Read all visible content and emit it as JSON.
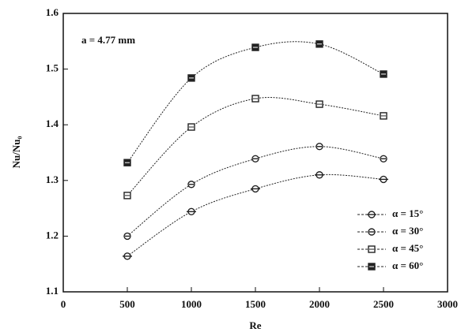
{
  "chart_data": {
    "type": "line",
    "xlabel": "Re",
    "ylabel": "Nu/Nu₀",
    "annotation": "a = 4.77 mm",
    "xlim": [
      0,
      3000
    ],
    "xticks": [
      0,
      500,
      1000,
      1500,
      2000,
      2500,
      3000
    ],
    "ylim": [
      1.1,
      1.6
    ],
    "yticks": [
      1.1,
      1.2,
      1.3,
      1.4,
      1.5,
      1.6
    ],
    "grid": false,
    "legend": "lower right",
    "x": [
      500,
      1000,
      1500,
      2000,
      2500
    ],
    "series": [
      {
        "name": "α = 15°",
        "color": "#222222",
        "marker": "circle-dash",
        "values": [
          1.164,
          1.244,
          1.285,
          1.31,
          1.302
        ]
      },
      {
        "name": "α = 30°",
        "color": "#222222",
        "marker": "circle-theta",
        "values": [
          1.2,
          1.293,
          1.339,
          1.361,
          1.339
        ]
      },
      {
        "name": "α = 45°",
        "color": "#222222",
        "marker": "square",
        "values": [
          1.273,
          1.396,
          1.447,
          1.437,
          1.416
        ]
      },
      {
        "name": "α = 60°",
        "color": "#222222",
        "marker": "square-filled",
        "values": [
          1.332,
          1.484,
          1.539,
          1.545,
          1.491
        ]
      }
    ]
  }
}
